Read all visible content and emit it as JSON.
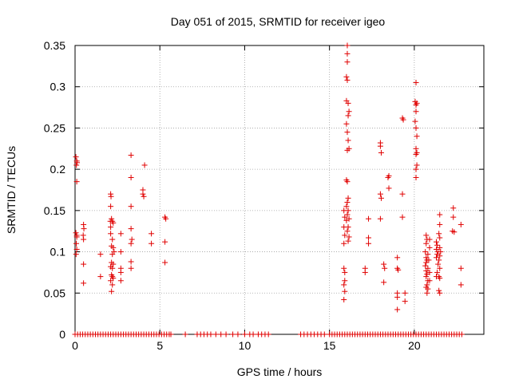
{
  "chart_data": {
    "type": "scatter",
    "title": "Day 051 of 2015, SRMTID for receiver igeo",
    "xlabel": "GPS time / hours",
    "ylabel": "SRMTID / TECUs",
    "xlim": [
      0,
      24.1
    ],
    "ylim": [
      0,
      0.35
    ],
    "xticks": [
      0,
      5,
      10,
      15,
      20
    ],
    "yticks": [
      0,
      0.05,
      0.1,
      0.15,
      0.2,
      0.25,
      0.3,
      0.35
    ],
    "xtick_labels": [
      "0",
      "5",
      "10",
      "15",
      "20"
    ],
    "ytick_labels": [
      "0",
      "0.05",
      "0.1",
      "0.15",
      "0.2",
      "0.25",
      "0.3",
      "0.35"
    ],
    "grid": true,
    "marker": "+",
    "color": "#e00000",
    "series": [
      {
        "name": "SRMTID",
        "points": [
          [
            0.05,
            0.215
          ],
          [
            0.1,
            0.21
          ],
          [
            0.08,
            0.205
          ],
          [
            0.12,
            0.208
          ],
          [
            0.1,
            0.185
          ],
          [
            0.05,
            0.123
          ],
          [
            0.1,
            0.118
          ],
          [
            0.07,
            0.11
          ],
          [
            0.1,
            0.103
          ],
          [
            0.06,
            0.097
          ],
          [
            0.1,
            0.12
          ],
          [
            0.5,
            0.133
          ],
          [
            0.52,
            0.128
          ],
          [
            0.48,
            0.12
          ],
          [
            0.5,
            0.115
          ],
          [
            0.5,
            0.085
          ],
          [
            0.5,
            0.062
          ],
          [
            1.5,
            0.097
          ],
          [
            1.5,
            0.07
          ],
          [
            2.1,
            0.17
          ],
          [
            2.12,
            0.167
          ],
          [
            2.1,
            0.155
          ],
          [
            2.15,
            0.14
          ],
          [
            2.08,
            0.137
          ],
          [
            2.1,
            0.13
          ],
          [
            2.2,
            0.137
          ],
          [
            2.25,
            0.135
          ],
          [
            2.1,
            0.122
          ],
          [
            2.2,
            0.115
          ],
          [
            2.15,
            0.107
          ],
          [
            2.25,
            0.105
          ],
          [
            2.3,
            0.1
          ],
          [
            2.2,
            0.097
          ],
          [
            2.15,
            0.087
          ],
          [
            2.1,
            0.082
          ],
          [
            2.2,
            0.08
          ],
          [
            2.25,
            0.085
          ],
          [
            2.15,
            0.072
          ],
          [
            2.1,
            0.065
          ],
          [
            2.2,
            0.06
          ],
          [
            2.15,
            0.052
          ],
          [
            2.2,
            0.07
          ],
          [
            2.25,
            0.068
          ],
          [
            2.7,
            0.122
          ],
          [
            2.7,
            0.1
          ],
          [
            2.7,
            0.08
          ],
          [
            2.7,
            0.075
          ],
          [
            2.7,
            0.065
          ],
          [
            3.3,
            0.217
          ],
          [
            3.3,
            0.19
          ],
          [
            3.3,
            0.155
          ],
          [
            3.3,
            0.128
          ],
          [
            3.35,
            0.115
          ],
          [
            3.3,
            0.11
          ],
          [
            3.3,
            0.088
          ],
          [
            3.3,
            0.08
          ],
          [
            4.0,
            0.175
          ],
          [
            4.0,
            0.17
          ],
          [
            4.05,
            0.167
          ],
          [
            4.1,
            0.205
          ],
          [
            4.5,
            0.122
          ],
          [
            4.5,
            0.11
          ],
          [
            5.3,
            0.142
          ],
          [
            5.35,
            0.14
          ],
          [
            5.3,
            0.112
          ],
          [
            5.3,
            0.087
          ],
          [
            15.85,
            0.15
          ],
          [
            15.9,
            0.142
          ],
          [
            15.85,
            0.13
          ],
          [
            15.9,
            0.12
          ],
          [
            15.85,
            0.11
          ],
          [
            15.9,
            0.075
          ],
          [
            15.85,
            0.08
          ],
          [
            15.9,
            0.065
          ],
          [
            15.85,
            0.06
          ],
          [
            15.9,
            0.052
          ],
          [
            15.85,
            0.042
          ],
          [
            16.05,
            0.35
          ],
          [
            16.05,
            0.34
          ],
          [
            16.05,
            0.33
          ],
          [
            16.0,
            0.312
          ],
          [
            16.05,
            0.308
          ],
          [
            16.0,
            0.283
          ],
          [
            16.1,
            0.28
          ],
          [
            16.15,
            0.27
          ],
          [
            16.1,
            0.265
          ],
          [
            16.0,
            0.255
          ],
          [
            16.05,
            0.245
          ],
          [
            16.1,
            0.235
          ],
          [
            16.15,
            0.225
          ],
          [
            16.05,
            0.223
          ],
          [
            16.0,
            0.187
          ],
          [
            16.05,
            0.185
          ],
          [
            16.1,
            0.165
          ],
          [
            16.05,
            0.16
          ],
          [
            16.0,
            0.155
          ],
          [
            16.1,
            0.15
          ],
          [
            16.05,
            0.145
          ],
          [
            16.15,
            0.14
          ],
          [
            16.0,
            0.138
          ],
          [
            16.1,
            0.13
          ],
          [
            16.05,
            0.125
          ],
          [
            16.15,
            0.118
          ],
          [
            16.1,
            0.113
          ],
          [
            17.1,
            0.08
          ],
          [
            17.1,
            0.075
          ],
          [
            17.3,
            0.14
          ],
          [
            17.3,
            0.117
          ],
          [
            17.3,
            0.11
          ],
          [
            18.0,
            0.232
          ],
          [
            18.0,
            0.228
          ],
          [
            18.05,
            0.22
          ],
          [
            18.0,
            0.17
          ],
          [
            18.05,
            0.165
          ],
          [
            18.0,
            0.14
          ],
          [
            18.2,
            0.085
          ],
          [
            18.25,
            0.08
          ],
          [
            18.2,
            0.063
          ],
          [
            18.5,
            0.192
          ],
          [
            18.45,
            0.19
          ],
          [
            18.5,
            0.177
          ],
          [
            19.0,
            0.093
          ],
          [
            19.0,
            0.08
          ],
          [
            19.05,
            0.078
          ],
          [
            19.0,
            0.05
          ],
          [
            19.0,
            0.045
          ],
          [
            19.0,
            0.03
          ],
          [
            19.3,
            0.262
          ],
          [
            19.35,
            0.26
          ],
          [
            19.3,
            0.17
          ],
          [
            19.3,
            0.142
          ],
          [
            19.45,
            0.05
          ],
          [
            19.45,
            0.04
          ],
          [
            20.1,
            0.305
          ],
          [
            20.05,
            0.282
          ],
          [
            20.1,
            0.278
          ],
          [
            20.15,
            0.28
          ],
          [
            20.1,
            0.27
          ],
          [
            20.05,
            0.258
          ],
          [
            20.1,
            0.25
          ],
          [
            20.15,
            0.24
          ],
          [
            20.1,
            0.225
          ],
          [
            20.15,
            0.22
          ],
          [
            20.1,
            0.218
          ],
          [
            20.15,
            0.205
          ],
          [
            20.1,
            0.2
          ],
          [
            20.1,
            0.19
          ],
          [
            20.7,
            0.12
          ],
          [
            20.75,
            0.115
          ],
          [
            20.7,
            0.11
          ],
          [
            20.65,
            0.1
          ],
          [
            20.8,
            0.097
          ],
          [
            20.7,
            0.093
          ],
          [
            20.75,
            0.09
          ],
          [
            20.7,
            0.087
          ],
          [
            20.65,
            0.083
          ],
          [
            20.8,
            0.08
          ],
          [
            20.7,
            0.077
          ],
          [
            20.75,
            0.073
          ],
          [
            20.7,
            0.07
          ],
          [
            20.8,
            0.065
          ],
          [
            20.75,
            0.06
          ],
          [
            20.7,
            0.057
          ],
          [
            20.8,
            0.055
          ],
          [
            20.75,
            0.05
          ],
          [
            20.9,
            0.115
          ],
          [
            20.9,
            0.105
          ],
          [
            20.85,
            0.09
          ],
          [
            20.9,
            0.075
          ],
          [
            20.9,
            0.065
          ],
          [
            21.3,
            0.112
          ],
          [
            21.35,
            0.108
          ],
          [
            21.3,
            0.103
          ],
          [
            21.4,
            0.1
          ],
          [
            21.35,
            0.097
          ],
          [
            21.3,
            0.093
          ],
          [
            21.45,
            0.09
          ],
          [
            21.4,
            0.085
          ],
          [
            21.35,
            0.075
          ],
          [
            21.3,
            0.07
          ],
          [
            21.45,
            0.07
          ],
          [
            21.5,
            0.145
          ],
          [
            21.5,
            0.133
          ],
          [
            21.45,
            0.122
          ],
          [
            21.5,
            0.117
          ],
          [
            21.5,
            0.105
          ],
          [
            21.55,
            0.1
          ],
          [
            21.5,
            0.095
          ],
          [
            21.5,
            0.08
          ],
          [
            21.5,
            0.068
          ],
          [
            21.45,
            0.053
          ],
          [
            21.5,
            0.05
          ],
          [
            22.3,
            0.153
          ],
          [
            22.3,
            0.142
          ],
          [
            22.25,
            0.125
          ],
          [
            22.35,
            0.124
          ],
          [
            22.75,
            0.133
          ],
          [
            22.75,
            0.08
          ],
          [
            22.75,
            0.06
          ],
          [
            0.0,
            0
          ],
          [
            0.15,
            0
          ],
          [
            0.3,
            0
          ],
          [
            0.45,
            0
          ],
          [
            0.6,
            0
          ],
          [
            0.75,
            0
          ],
          [
            0.9,
            0
          ],
          [
            1.05,
            0
          ],
          [
            1.2,
            0
          ],
          [
            1.35,
            0
          ],
          [
            1.5,
            0
          ],
          [
            1.65,
            0
          ],
          [
            1.8,
            0
          ],
          [
            1.95,
            0
          ],
          [
            2.1,
            0
          ],
          [
            2.25,
            0
          ],
          [
            2.4,
            0
          ],
          [
            2.55,
            0
          ],
          [
            2.7,
            0
          ],
          [
            2.85,
            0
          ],
          [
            3.0,
            0
          ],
          [
            3.15,
            0
          ],
          [
            3.3,
            0
          ],
          [
            3.45,
            0
          ],
          [
            3.6,
            0
          ],
          [
            3.75,
            0
          ],
          [
            3.9,
            0
          ],
          [
            4.05,
            0
          ],
          [
            4.2,
            0
          ],
          [
            4.35,
            0
          ],
          [
            4.5,
            0
          ],
          [
            4.65,
            0
          ],
          [
            4.8,
            0
          ],
          [
            4.95,
            0
          ],
          [
            5.1,
            0
          ],
          [
            5.25,
            0
          ],
          [
            5.4,
            0
          ],
          [
            5.55,
            0
          ],
          [
            5.65,
            0
          ],
          [
            6.5,
            0
          ],
          [
            7.2,
            0
          ],
          [
            7.4,
            0
          ],
          [
            7.6,
            0
          ],
          [
            7.8,
            0
          ],
          [
            8.0,
            0
          ],
          [
            8.3,
            0
          ],
          [
            8.6,
            0
          ],
          [
            8.9,
            0
          ],
          [
            9.3,
            0
          ],
          [
            9.6,
            0
          ],
          [
            10.0,
            0
          ],
          [
            10.3,
            0
          ],
          [
            10.5,
            0
          ],
          [
            10.8,
            0
          ],
          [
            11.0,
            0
          ],
          [
            11.2,
            0
          ],
          [
            11.4,
            0
          ],
          [
            13.3,
            0
          ],
          [
            13.5,
            0
          ],
          [
            13.7,
            0
          ],
          [
            13.9,
            0
          ],
          [
            14.1,
            0
          ],
          [
            14.3,
            0
          ],
          [
            14.5,
            0
          ],
          [
            14.7,
            0
          ],
          [
            15.0,
            0
          ],
          [
            15.15,
            0
          ],
          [
            15.3,
            0
          ],
          [
            15.45,
            0
          ],
          [
            15.6,
            0
          ],
          [
            15.75,
            0
          ],
          [
            15.9,
            0
          ],
          [
            16.05,
            0
          ],
          [
            16.2,
            0
          ],
          [
            16.35,
            0
          ],
          [
            16.5,
            0
          ],
          [
            16.65,
            0
          ],
          [
            16.8,
            0
          ],
          [
            16.95,
            0
          ],
          [
            17.1,
            0
          ],
          [
            17.25,
            0
          ],
          [
            17.4,
            0
          ],
          [
            17.55,
            0
          ],
          [
            17.7,
            0
          ],
          [
            17.85,
            0
          ],
          [
            18.0,
            0
          ],
          [
            18.15,
            0
          ],
          [
            18.3,
            0
          ],
          [
            18.45,
            0
          ],
          [
            18.6,
            0
          ],
          [
            18.75,
            0
          ],
          [
            18.9,
            0
          ],
          [
            19.05,
            0
          ],
          [
            19.2,
            0
          ],
          [
            19.35,
            0
          ],
          [
            19.5,
            0
          ],
          [
            19.65,
            0
          ],
          [
            19.8,
            0
          ],
          [
            19.95,
            0
          ],
          [
            20.1,
            0
          ],
          [
            20.25,
            0
          ],
          [
            20.4,
            0
          ],
          [
            20.55,
            0
          ],
          [
            20.7,
            0
          ],
          [
            20.85,
            0
          ],
          [
            21.0,
            0
          ],
          [
            21.15,
            0
          ],
          [
            21.3,
            0
          ],
          [
            21.45,
            0
          ],
          [
            21.6,
            0
          ],
          [
            21.75,
            0
          ],
          [
            21.9,
            0
          ],
          [
            22.05,
            0
          ],
          [
            22.2,
            0
          ],
          [
            22.35,
            0
          ],
          [
            22.5,
            0
          ],
          [
            22.65,
            0
          ],
          [
            22.8,
            0
          ]
        ]
      }
    ]
  }
}
